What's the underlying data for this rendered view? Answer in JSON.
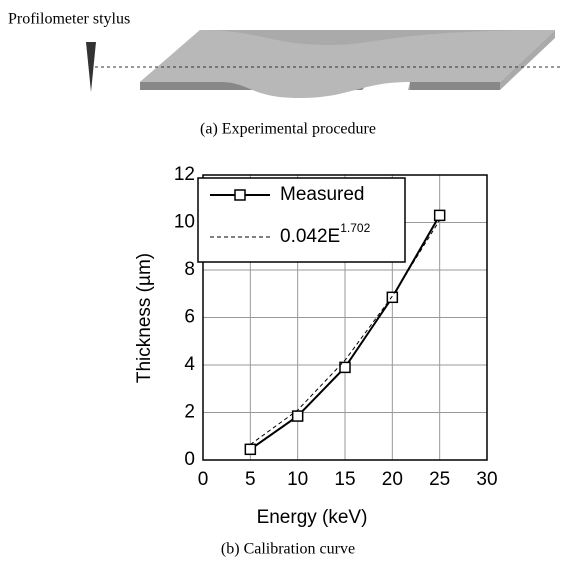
{
  "diagram": {
    "label": "Profilometer stylus",
    "caption": "(a) Experimental procedure"
  },
  "chart_data": {
    "type": "line",
    "caption": "(b) Calibration curve",
    "x_label": "Energy (keV)",
    "y_label": "Thickness (µm)",
    "x": [
      5,
      10,
      15,
      20,
      25
    ],
    "series": [
      {
        "name": "Measured",
        "color": "#000000",
        "values": [
          0.45,
          1.85,
          3.9,
          6.85,
          10.3
        ],
        "marker": "square",
        "dashed": false
      },
      {
        "name": "0.042E",
        "name_sup": "1.702",
        "color": "#000000",
        "values": [
          0.65,
          2.1,
          4.2,
          6.9,
          10.1
        ],
        "marker": "none",
        "dashed": true
      }
    ],
    "xlim": [
      0,
      30
    ],
    "xticks": [
      0,
      5,
      10,
      15,
      20,
      25,
      30
    ],
    "ylim": [
      0,
      12
    ],
    "yticks": [
      0,
      2,
      4,
      6,
      8,
      10,
      12
    ],
    "grid": true,
    "legend": "upper left"
  }
}
